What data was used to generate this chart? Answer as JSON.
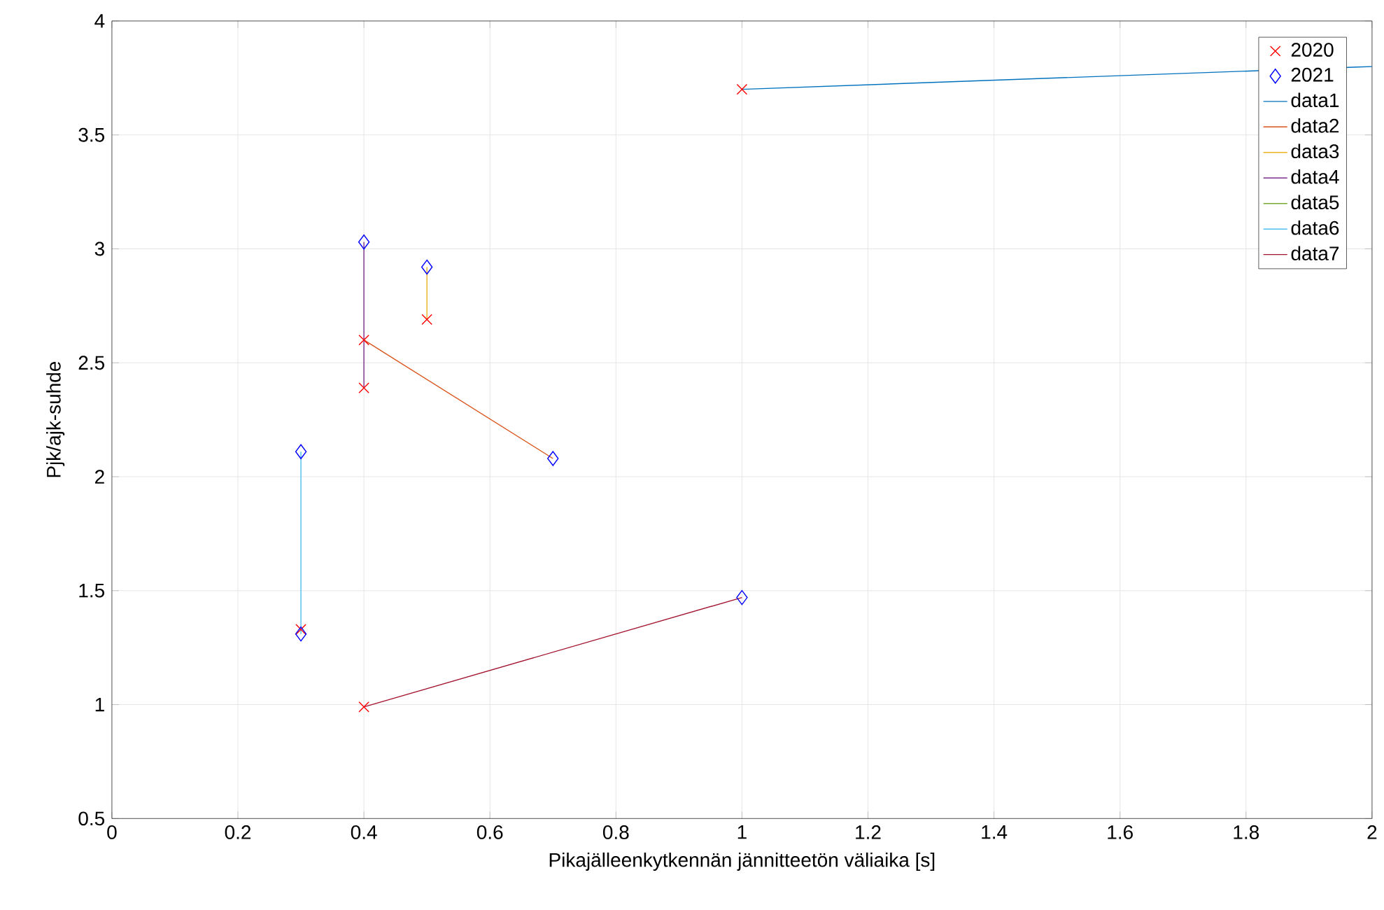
{
  "chart_data": {
    "type": "scatter",
    "xlabel": "Pikajälleenkytkennän jännitteetön väliaika [s]",
    "ylabel": "Pjk/ajk-suhde",
    "xlim": [
      0,
      2
    ],
    "ylim": [
      0.5,
      4
    ],
    "xticks": [
      0,
      0.2,
      0.4,
      0.6,
      0.8,
      1,
      1.2,
      1.4,
      1.6,
      1.8,
      2
    ],
    "yticks": [
      0.5,
      1,
      1.5,
      2,
      2.5,
      3,
      3.5,
      4
    ],
    "grid": true,
    "legend": "top right",
    "series": [
      {
        "name": "2020",
        "type": "scatter",
        "marker": "cross",
        "color": "#ff0000",
        "x": [
          1.0,
          0.5,
          0.4,
          0.4,
          0.3,
          0.4
        ],
        "values": [
          3.7,
          2.69,
          2.6,
          2.39,
          1.33,
          0.99
        ]
      },
      {
        "name": "2021",
        "type": "scatter",
        "marker": "diamond",
        "color": "#0000ff",
        "x": [
          0.4,
          0.5,
          0.7,
          0.3,
          0.3,
          1.0
        ],
        "values": [
          3.03,
          2.92,
          2.08,
          2.11,
          1.31,
          1.47
        ]
      },
      {
        "name": "data1",
        "type": "line",
        "color": "#0072bd",
        "x": [
          1.0,
          2.0
        ],
        "values": [
          3.7,
          3.8
        ]
      },
      {
        "name": "data2",
        "type": "line",
        "color": "#d95319",
        "x": [
          0.4,
          0.7
        ],
        "values": [
          2.6,
          2.08
        ]
      },
      {
        "name": "data3",
        "type": "line",
        "color": "#edb120",
        "x": [
          0.5,
          0.5
        ],
        "values": [
          2.69,
          2.92
        ]
      },
      {
        "name": "data4",
        "type": "line",
        "color": "#7e2f8e",
        "x": [
          0.4,
          0.4
        ],
        "values": [
          2.39,
          3.03
        ]
      },
      {
        "name": "data5",
        "type": "line",
        "color": "#77ac30",
        "values": [
          null,
          null
        ]
      },
      {
        "name": "data6",
        "type": "line",
        "color": "#4dbeee",
        "x": [
          0.3,
          0.3
        ],
        "values": [
          1.31,
          2.11
        ]
      },
      {
        "name": "data7",
        "type": "line",
        "color": "#a2142f",
        "x": [
          0.4,
          1.0
        ],
        "values": [
          0.99,
          1.47
        ]
      }
    ]
  }
}
